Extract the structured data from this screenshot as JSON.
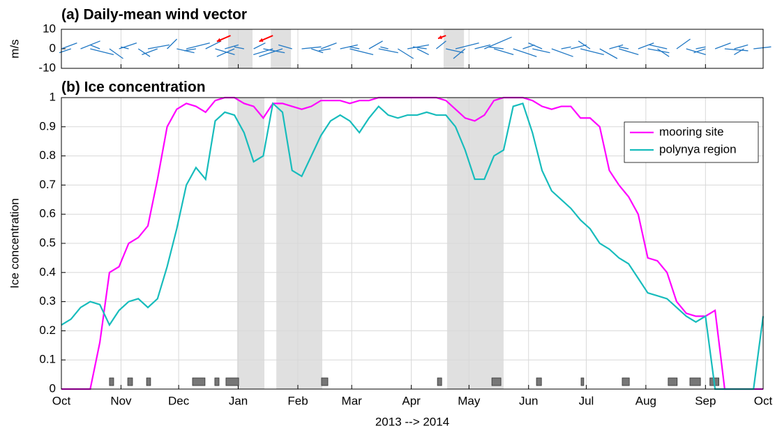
{
  "chart_data": [
    {
      "type": "vector",
      "title": "(a) Daily-mean wind vector",
      "ylabel": "m/s",
      "xlim": [
        0,
        365
      ],
      "ylim": [
        -10,
        10
      ],
      "yticks": [
        -10,
        0,
        10
      ],
      "grid": true,
      "shaded_periods": [
        [
          86.7,
          99.4
        ],
        [
          108.9,
          119.4
        ],
        [
          198.8,
          209.4
        ]
      ],
      "series": [
        {
          "color": "#1f77c4",
          "x": [
            0,
            5,
            10,
            15,
            20,
            25,
            30,
            35,
            40,
            45,
            50,
            55,
            60,
            65,
            70,
            75,
            80,
            85,
            90,
            95,
            100,
            105,
            110,
            115,
            120,
            125,
            130,
            135,
            140,
            145,
            150,
            155,
            160,
            165,
            170,
            175,
            180,
            185,
            190,
            195,
            200,
            205,
            210,
            215,
            220,
            225,
            230,
            235,
            240,
            245,
            250,
            255,
            260,
            265,
            270,
            275,
            280,
            285,
            290,
            295,
            300,
            305,
            310,
            315,
            320,
            325,
            330,
            335,
            340,
            345,
            350,
            355,
            360
          ],
          "u": [
            8,
            -6,
            10,
            12,
            -5,
            7,
            9,
            -4,
            6,
            11,
            -8,
            5,
            9,
            12,
            -6,
            8,
            10,
            7,
            -9,
            -5,
            6,
            11,
            -10,
            -12,
            -7,
            10,
            6,
            8,
            -6,
            9,
            12,
            -5,
            7,
            10,
            -4,
            8,
            11,
            6,
            -7,
            5,
            9,
            12,
            -6,
            8,
            14,
            10,
            -8,
            12,
            6,
            9,
            -7,
            11,
            5,
            8,
            12,
            -6,
            9,
            7,
            10,
            -5,
            8,
            11,
            6,
            -9,
            7,
            10,
            5,
            -6,
            8,
            12,
            7,
            -5,
            9
          ],
          "v": [
            3,
            -2,
            4,
            -3,
            2,
            -5,
            3,
            1,
            -4,
            2,
            -3,
            5,
            -2,
            3,
            -1,
            4,
            -3,
            2,
            -4,
            1,
            3,
            -2,
            -3,
            -4,
            2,
            1,
            -2,
            3,
            -1,
            2,
            -3,
            1,
            4,
            -2,
            1,
            -5,
            2,
            -3,
            1,
            4,
            -2,
            3,
            -5,
            2,
            6,
            -3,
            1,
            -4,
            2,
            -2,
            3,
            -4,
            1,
            2,
            -3,
            4,
            -5,
            2,
            -3,
            1,
            3,
            -2,
            -4,
            2,
            5,
            -3,
            1,
            -2,
            3,
            -1,
            2,
            -3,
            1
          ]
        },
        {
          "color": "#ff0000",
          "x": [
            88,
            110,
            200
          ],
          "u": [
            -7,
            -7,
            -4
          ],
          "v": [
            -3,
            -3,
            -1.5
          ]
        }
      ]
    },
    {
      "type": "line",
      "title": "(b) Ice concentration",
      "xlabel": "2013 --> 2014",
      "ylabel": "Ice concentration",
      "xlim": [
        0,
        365
      ],
      "ylim": [
        0,
        1
      ],
      "xticks": [
        {
          "value": 0,
          "label": "Oct"
        },
        {
          "value": 31,
          "label": "Nov"
        },
        {
          "value": 61,
          "label": "Dec"
        },
        {
          "value": 92,
          "label": "Jan"
        },
        {
          "value": 123,
          "label": "Feb"
        },
        {
          "value": 151,
          "label": "Mar"
        },
        {
          "value": 182,
          "label": "Apr"
        },
        {
          "value": 212,
          "label": "May"
        },
        {
          "value": 243,
          "label": "Jun"
        },
        {
          "value": 273,
          "label": "Jul"
        },
        {
          "value": 304,
          "label": "Aug"
        },
        {
          "value": 335,
          "label": "Sep"
        },
        {
          "value": 365,
          "label": "Oct"
        }
      ],
      "yticks": [
        0,
        0.1,
        0.2,
        0.3,
        0.4,
        0.5,
        0.6,
        0.7,
        0.8,
        0.9,
        1
      ],
      "grid": true,
      "legend": "top-right",
      "shaded_periods": [
        [
          91.4,
          105.6
        ],
        [
          111.8,
          135.7
        ],
        [
          200.6,
          230
        ]
      ],
      "events": [
        [
          25,
          27.2
        ],
        [
          34.5,
          37
        ],
        [
          44.3,
          46.4
        ],
        [
          68.2,
          74.7
        ],
        [
          79.8,
          82
        ],
        [
          85.6,
          92.2
        ],
        [
          135.3,
          138.6
        ],
        [
          195.6,
          197.8
        ],
        [
          223.9,
          228.6
        ],
        [
          247.1,
          249.7
        ],
        [
          270.3,
          271.7
        ],
        [
          291.7,
          295.4
        ],
        [
          315.6,
          320.3
        ],
        [
          326.9,
          332.4
        ],
        [
          337.3,
          342
        ]
      ],
      "x": [
        0,
        5,
        10,
        15,
        20,
        25,
        30,
        35,
        40,
        45,
        50,
        55,
        60,
        65,
        70,
        75,
        80,
        85,
        90,
        95,
        100,
        105,
        110,
        115,
        120,
        125,
        130,
        135,
        140,
        145,
        150,
        155,
        160,
        165,
        170,
        175,
        180,
        185,
        190,
        195,
        200,
        205,
        210,
        215,
        220,
        225,
        230,
        235,
        240,
        245,
        250,
        255,
        260,
        265,
        270,
        275,
        280,
        285,
        290,
        295,
        300,
        305,
        310,
        315,
        320,
        325,
        330,
        335,
        340,
        345,
        350,
        355,
        360,
        365
      ],
      "series": [
        {
          "name": "mooring site",
          "color": "#ff00ff",
          "values": [
            0,
            0,
            0,
            0,
            0.16,
            0.4,
            0.42,
            0.5,
            0.52,
            0.56,
            0.72,
            0.9,
            0.96,
            0.98,
            0.97,
            0.95,
            0.99,
            1,
            1,
            0.98,
            0.97,
            0.93,
            0.98,
            0.98,
            0.97,
            0.96,
            0.97,
            0.99,
            0.99,
            0.99,
            0.98,
            0.99,
            0.99,
            1,
            1,
            1,
            1,
            1,
            1,
            1,
            0.99,
            0.96,
            0.93,
            0.92,
            0.94,
            0.99,
            1,
            1,
            1,
            0.99,
            0.97,
            0.96,
            0.97,
            0.97,
            0.93,
            0.93,
            0.9,
            0.75,
            0.7,
            0.66,
            0.6,
            0.45,
            0.44,
            0.4,
            0.3,
            0.26,
            0.25,
            0.25,
            0.27,
            0,
            0,
            0,
            0,
            0
          ]
        },
        {
          "name": "polynya region",
          "color": "#17bcbc",
          "values": [
            0.22,
            0.24,
            0.28,
            0.3,
            0.29,
            0.22,
            0.27,
            0.3,
            0.31,
            0.28,
            0.31,
            0.42,
            0.55,
            0.7,
            0.76,
            0.72,
            0.92,
            0.95,
            0.94,
            0.88,
            0.78,
            0.8,
            0.98,
            0.95,
            0.75,
            0.73,
            0.8,
            0.87,
            0.92,
            0.94,
            0.92,
            0.88,
            0.93,
            0.97,
            0.94,
            0.93,
            0.94,
            0.94,
            0.95,
            0.94,
            0.94,
            0.9,
            0.82,
            0.72,
            0.72,
            0.8,
            0.82,
            0.97,
            0.98,
            0.88,
            0.75,
            0.68,
            0.65,
            0.62,
            0.58,
            0.55,
            0.5,
            0.48,
            0.45,
            0.43,
            0.38,
            0.33,
            0.32,
            0.31,
            0.28,
            0.25,
            0.23,
            0.25,
            0,
            0,
            0,
            0,
            0,
            0.25
          ]
        }
      ]
    }
  ]
}
